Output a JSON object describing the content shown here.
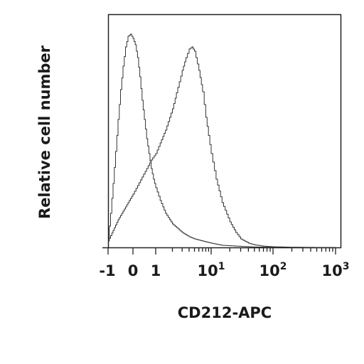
{
  "chart_data": {
    "type": "line",
    "title": "",
    "xlabel": "CD212-APC",
    "ylabel": "Relative cell number",
    "x_scale": "biexponential",
    "xlim": [
      -1,
      1000
    ],
    "ylim": [
      0,
      1.0
    ],
    "grid": false,
    "legend": "none",
    "x_tick_labels": [
      {
        "value": -1,
        "text": "-1"
      },
      {
        "value": 0,
        "text": "0"
      },
      {
        "value": 1,
        "text": "1"
      },
      {
        "value": 10,
        "base": "10",
        "exp": "1"
      },
      {
        "value": 100,
        "base": "10",
        "exp": "2"
      },
      {
        "value": 1000,
        "base": "10",
        "exp": "3"
      }
    ],
    "series": [
      {
        "x": [
          -1,
          -0.9,
          -0.8,
          -0.7,
          -0.6,
          -0.5,
          -0.4,
          -0.3,
          -0.2,
          -0.1,
          0,
          0.1,
          0.2,
          0.3,
          0.4,
          0.5,
          0.6,
          0.7,
          0.8,
          0.9,
          1.0,
          1.2,
          1.5,
          2,
          3,
          4,
          5,
          7,
          10,
          15,
          20,
          30,
          50,
          100,
          300,
          1000
        ],
        "y": [
          0.04,
          0.16,
          0.3,
          0.45,
          0.6,
          0.74,
          0.85,
          0.94,
          0.99,
          1.0,
          0.98,
          0.95,
          0.89,
          0.8,
          0.69,
          0.6,
          0.51,
          0.44,
          0.37,
          0.32,
          0.28,
          0.22,
          0.16,
          0.11,
          0.07,
          0.05,
          0.04,
          0.03,
          0.02,
          0.01,
          0.008,
          0.005,
          0.002,
          0.001,
          0,
          0
        ]
      },
      {
        "x": [
          -1,
          -0.8,
          -0.6,
          -0.4,
          -0.2,
          0,
          0.2,
          0.4,
          0.6,
          0.8,
          1.0,
          1.2,
          1.5,
          2,
          2.5,
          3,
          3.5,
          4,
          4.5,
          5,
          6,
          7,
          8,
          10,
          12,
          15,
          20,
          25,
          30,
          40,
          50,
          70,
          100,
          200,
          500,
          1000
        ],
        "y": [
          0.03,
          0.08,
          0.13,
          0.17,
          0.21,
          0.25,
          0.29,
          0.33,
          0.37,
          0.41,
          0.44,
          0.49,
          0.55,
          0.65,
          0.75,
          0.83,
          0.89,
          0.93,
          0.94,
          0.92,
          0.83,
          0.73,
          0.61,
          0.44,
          0.32,
          0.21,
          0.12,
          0.07,
          0.04,
          0.02,
          0.012,
          0.006,
          0.003,
          0.001,
          0,
          0
        ]
      }
    ]
  }
}
